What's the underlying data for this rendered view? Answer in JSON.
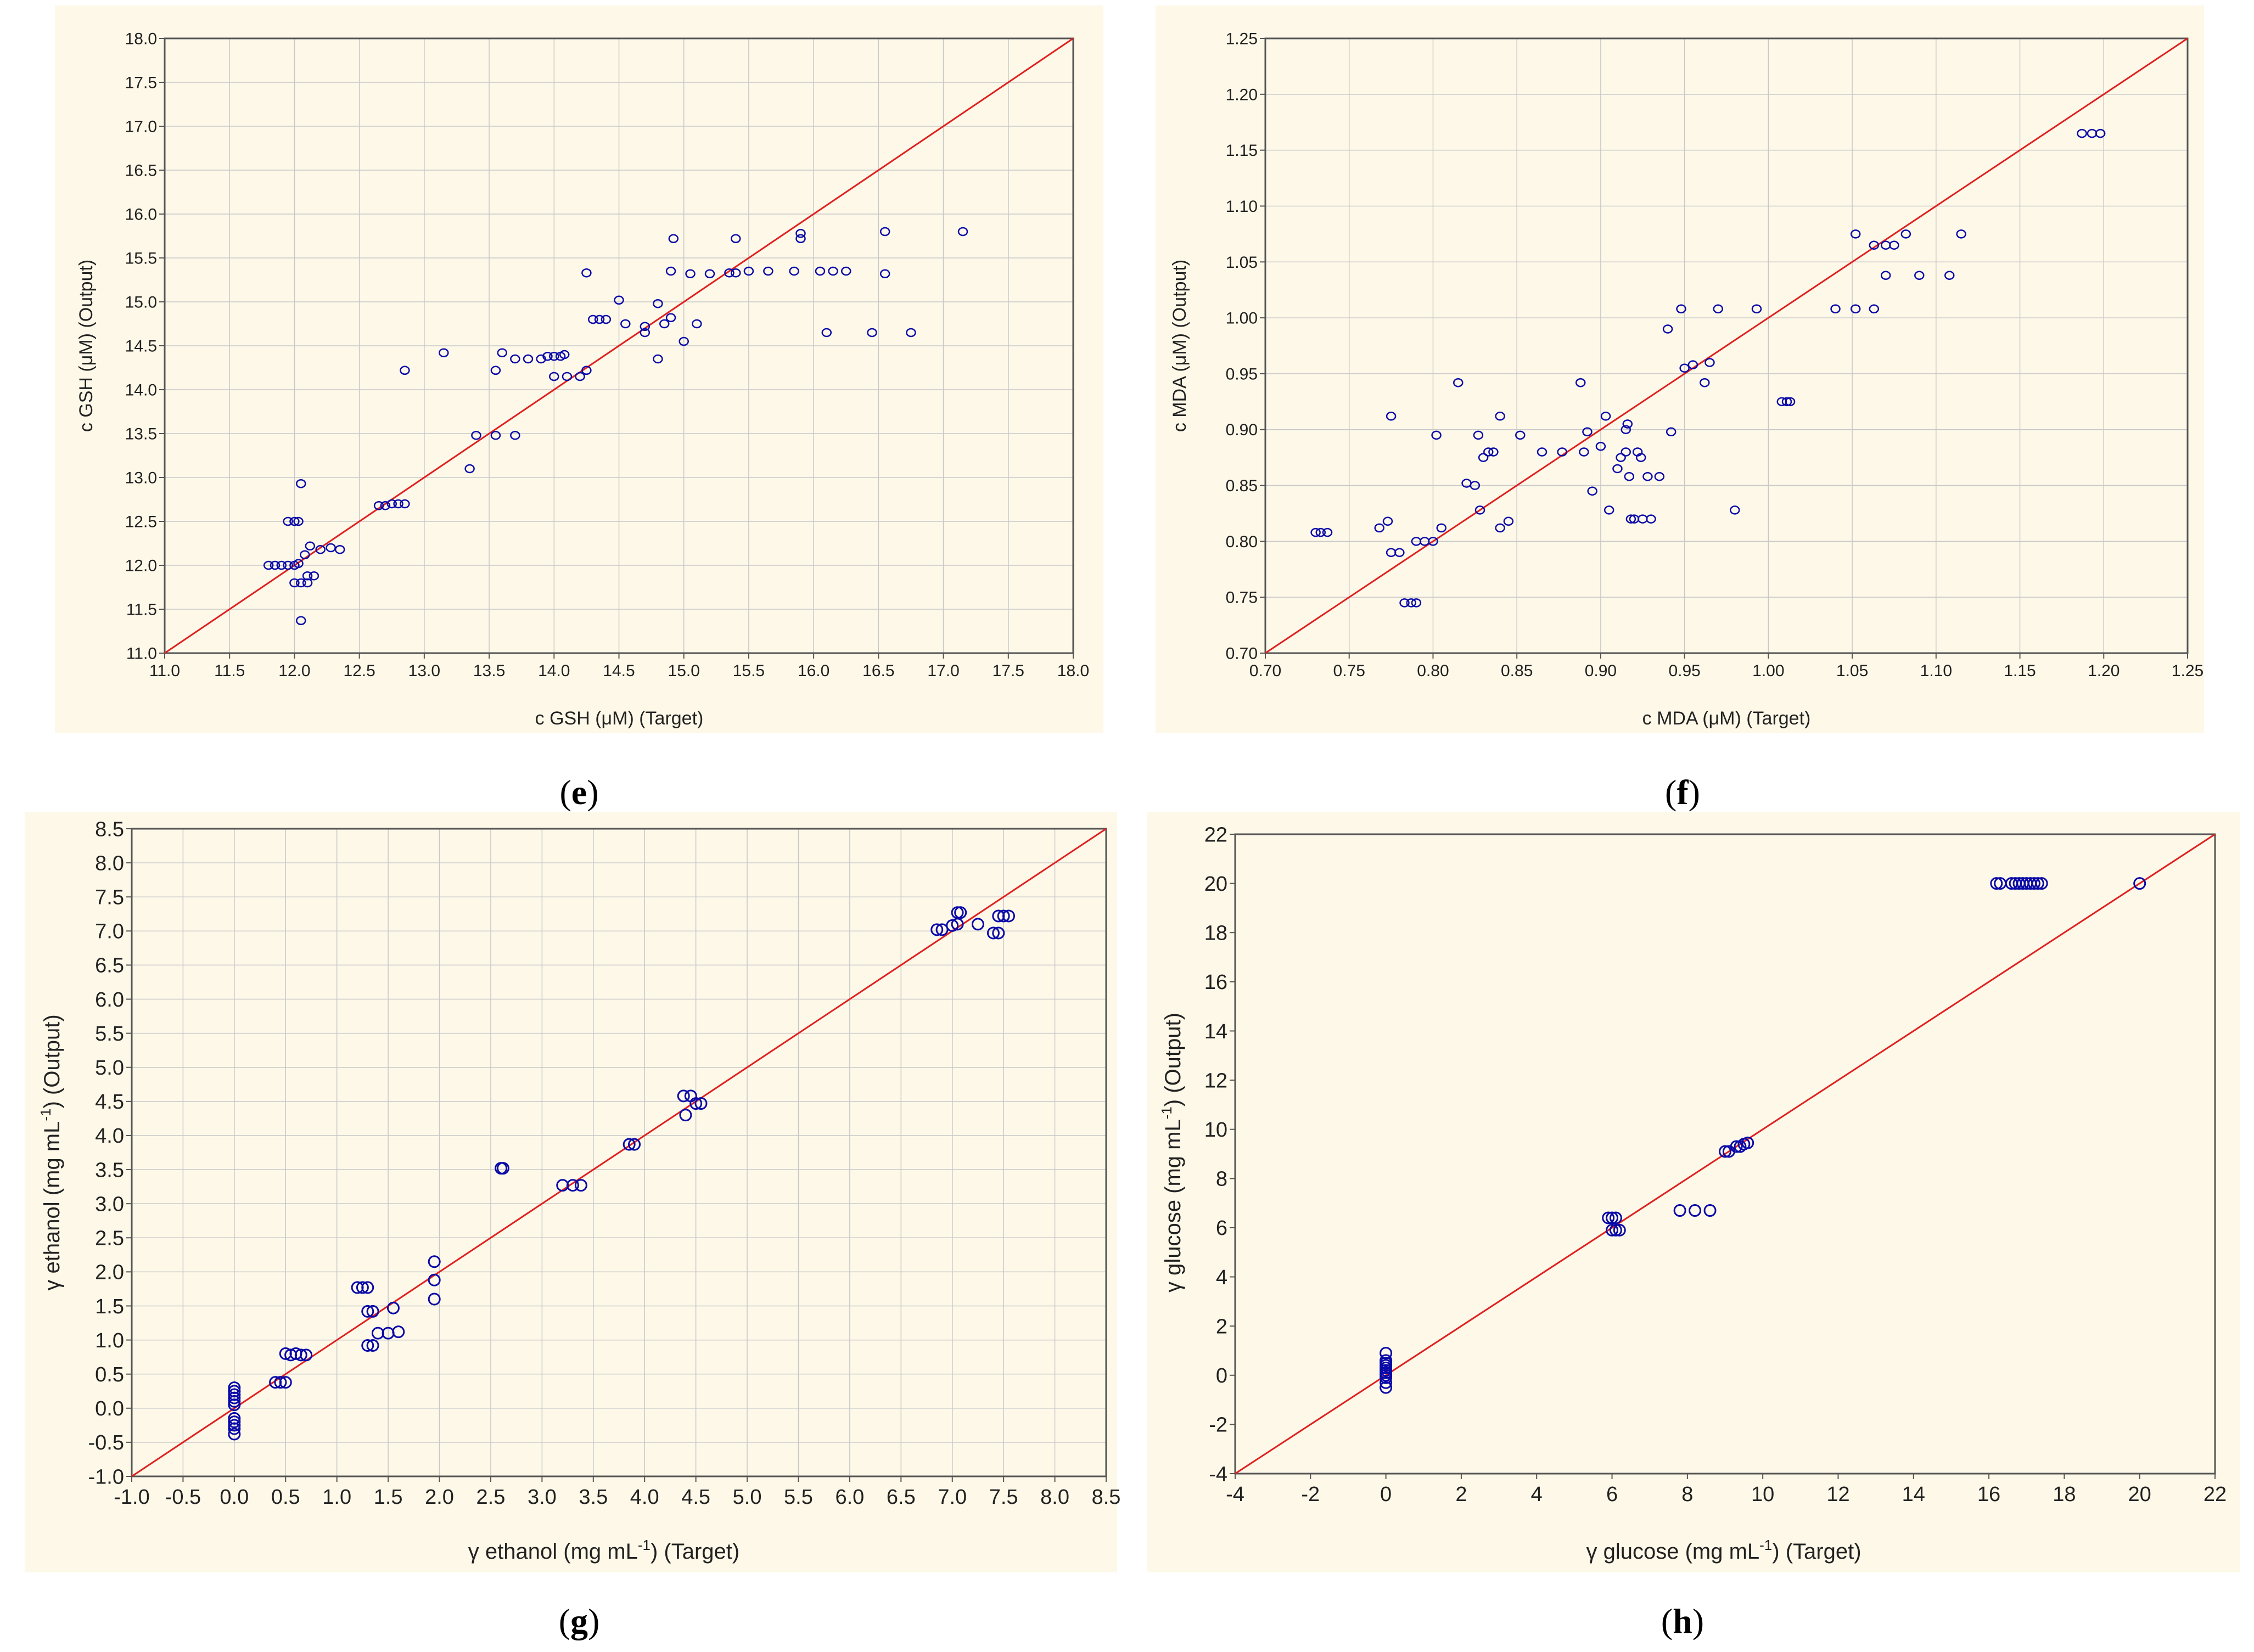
{
  "colors": {
    "panel_bg": "#fdf8e8",
    "line": "#e02020",
    "marker": "#0a0aa8",
    "grid": "#c8c8c8",
    "axis": "#555555"
  },
  "chart_data": [
    {
      "id": "e",
      "type": "scatter",
      "panel_label": "e",
      "xlabel": "c GSH (μM) (Target)",
      "ylabel": "c GSH (μM) (Output)",
      "xlim": [
        11.0,
        18.0
      ],
      "ylim": [
        11.0,
        18.0
      ],
      "xticks": [
        "11.0",
        "11.5",
        "12.0",
        "12.5",
        "13.0",
        "13.5",
        "14.0",
        "14.5",
        "15.0",
        "15.5",
        "16.0",
        "16.5",
        "17.0",
        "17.5",
        "18.0"
      ],
      "yticks": [
        "11.0",
        "11.5",
        "12.0",
        "12.5",
        "13.0",
        "13.5",
        "14.0",
        "14.5",
        "15.0",
        "15.5",
        "16.0",
        "16.5",
        "17.0",
        "17.5",
        "18.0"
      ],
      "grid": true,
      "reference_line": "y = x",
      "points": [
        [
          11.8,
          12.0
        ],
        [
          11.85,
          12.0
        ],
        [
          11.9,
          12.0
        ],
        [
          11.95,
          12.0
        ],
        [
          12.0,
          12.0
        ],
        [
          12.03,
          12.02
        ],
        [
          11.95,
          12.5
        ],
        [
          12.0,
          12.5
        ],
        [
          12.03,
          12.5
        ],
        [
          12.05,
          12.93
        ],
        [
          12.0,
          11.8
        ],
        [
          12.05,
          11.8
        ],
        [
          12.1,
          11.8
        ],
        [
          12.1,
          11.88
        ],
        [
          12.15,
          11.88
        ],
        [
          12.05,
          11.37
        ],
        [
          12.08,
          12.12
        ],
        [
          12.12,
          12.22
        ],
        [
          12.2,
          12.18
        ],
        [
          12.28,
          12.2
        ],
        [
          12.35,
          12.18
        ],
        [
          12.65,
          12.68
        ],
        [
          12.7,
          12.68
        ],
        [
          12.75,
          12.7
        ],
        [
          12.8,
          12.7
        ],
        [
          12.85,
          12.7
        ],
        [
          12.85,
          14.22
        ],
        [
          13.15,
          14.42
        ],
        [
          13.35,
          13.1
        ],
        [
          13.4,
          13.48
        ],
        [
          13.55,
          13.48
        ],
        [
          13.7,
          13.48
        ],
        [
          13.55,
          14.22
        ],
        [
          13.6,
          14.42
        ],
        [
          13.7,
          14.35
        ],
        [
          13.8,
          14.35
        ],
        [
          13.9,
          14.35
        ],
        [
          13.95,
          14.38
        ],
        [
          14.0,
          14.38
        ],
        [
          14.05,
          14.38
        ],
        [
          14.08,
          14.4
        ],
        [
          14.0,
          14.15
        ],
        [
          14.1,
          14.15
        ],
        [
          14.2,
          14.15
        ],
        [
          14.25,
          14.22
        ],
        [
          14.25,
          15.33
        ],
        [
          14.3,
          14.8
        ],
        [
          14.35,
          14.8
        ],
        [
          14.4,
          14.8
        ],
        [
          14.5,
          15.02
        ],
        [
          14.55,
          14.75
        ],
        [
          14.7,
          14.65
        ],
        [
          14.7,
          14.72
        ],
        [
          14.8,
          14.98
        ],
        [
          14.8,
          14.35
        ],
        [
          14.85,
          14.75
        ],
        [
          14.9,
          14.82
        ],
        [
          14.9,
          15.35
        ],
        [
          14.92,
          15.72
        ],
        [
          15.0,
          14.55
        ],
        [
          15.05,
          15.32
        ],
        [
          15.1,
          14.75
        ],
        [
          15.2,
          15.32
        ],
        [
          15.35,
          15.33
        ],
        [
          15.4,
          15.33
        ],
        [
          15.4,
          15.72
        ],
        [
          15.5,
          15.35
        ],
        [
          15.65,
          15.35
        ],
        [
          15.85,
          15.35
        ],
        [
          15.9,
          15.78
        ],
        [
          15.9,
          15.72
        ],
        [
          16.05,
          15.35
        ],
        [
          16.15,
          15.35
        ],
        [
          16.25,
          15.35
        ],
        [
          16.1,
          14.65
        ],
        [
          16.45,
          14.65
        ],
        [
          16.55,
          15.32
        ],
        [
          16.55,
          15.8
        ],
        [
          16.75,
          14.65
        ],
        [
          17.15,
          15.8
        ]
      ]
    },
    {
      "id": "f",
      "type": "scatter",
      "panel_label": "f",
      "xlabel": "c MDA (μM) (Target)",
      "ylabel": "c MDA (μM) (Output)",
      "xlim": [
        0.7,
        1.25
      ],
      "ylim": [
        0.7,
        1.25
      ],
      "xticks": [
        "0.70",
        "0.75",
        "0.80",
        "0.85",
        "0.90",
        "0.95",
        "1.00",
        "1.05",
        "1.10",
        "1.15",
        "1.20",
        "1.25"
      ],
      "yticks": [
        "0.70",
        "0.75",
        "0.80",
        "0.85",
        "0.90",
        "0.95",
        "1.00",
        "1.05",
        "1.10",
        "1.15",
        "1.20",
        "1.25"
      ],
      "grid": true,
      "reference_line": "y = x",
      "points": [
        [
          0.73,
          0.808
        ],
        [
          0.733,
          0.808
        ],
        [
          0.737,
          0.808
        ],
        [
          0.768,
          0.812
        ],
        [
          0.773,
          0.818
        ],
        [
          0.775,
          0.912
        ],
        [
          0.775,
          0.79
        ],
        [
          0.78,
          0.79
        ],
        [
          0.783,
          0.745
        ],
        [
          0.787,
          0.745
        ],
        [
          0.79,
          0.745
        ],
        [
          0.79,
          0.8
        ],
        [
          0.795,
          0.8
        ],
        [
          0.8,
          0.8
        ],
        [
          0.802,
          0.895
        ],
        [
          0.805,
          0.812
        ],
        [
          0.815,
          0.942
        ],
        [
          0.82,
          0.852
        ],
        [
          0.825,
          0.85
        ],
        [
          0.827,
          0.895
        ],
        [
          0.828,
          0.828
        ],
        [
          0.83,
          0.875
        ],
        [
          0.833,
          0.88
        ],
        [
          0.836,
          0.88
        ],
        [
          0.84,
          0.912
        ],
        [
          0.84,
          0.812
        ],
        [
          0.845,
          0.818
        ],
        [
          0.852,
          0.895
        ],
        [
          0.865,
          0.88
        ],
        [
          0.877,
          0.88
        ],
        [
          0.888,
          0.942
        ],
        [
          0.89,
          0.88
        ],
        [
          0.892,
          0.898
        ],
        [
          0.895,
          0.845
        ],
        [
          0.9,
          0.885
        ],
        [
          0.903,
          0.912
        ],
        [
          0.905,
          0.828
        ],
        [
          0.91,
          0.865
        ],
        [
          0.912,
          0.875
        ],
        [
          0.915,
          0.88
        ],
        [
          0.915,
          0.9
        ],
        [
          0.916,
          0.905
        ],
        [
          0.917,
          0.858
        ],
        [
          0.918,
          0.82
        ],
        [
          0.92,
          0.82
        ],
        [
          0.922,
          0.88
        ],
        [
          0.924,
          0.875
        ],
        [
          0.925,
          0.82
        ],
        [
          0.928,
          0.858
        ],
        [
          0.93,
          0.82
        ],
        [
          0.935,
          0.858
        ],
        [
          0.94,
          0.99
        ],
        [
          0.942,
          0.898
        ],
        [
          0.948,
          1.008
        ],
        [
          0.95,
          0.955
        ],
        [
          0.955,
          0.958
        ],
        [
          0.962,
          0.942
        ],
        [
          0.965,
          0.96
        ],
        [
          0.97,
          1.008
        ],
        [
          0.98,
          0.828
        ],
        [
          0.993,
          1.008
        ],
        [
          1.008,
          0.925
        ],
        [
          1.011,
          0.925
        ],
        [
          1.013,
          0.925
        ],
        [
          1.04,
          1.008
        ],
        [
          1.052,
          1.008
        ],
        [
          1.052,
          1.075
        ],
        [
          1.063,
          1.008
        ],
        [
          1.063,
          1.065
        ],
        [
          1.07,
          1.065
        ],
        [
          1.07,
          1.038
        ],
        [
          1.075,
          1.065
        ],
        [
          1.082,
          1.075
        ],
        [
          1.09,
          1.038
        ],
        [
          1.108,
          1.038
        ],
        [
          1.115,
          1.075
        ],
        [
          1.187,
          1.165
        ],
        [
          1.193,
          1.165
        ],
        [
          1.198,
          1.165
        ]
      ]
    },
    {
      "id": "g",
      "type": "scatter",
      "panel_label": "g",
      "xlabel": "γ ethanol (mg mL",
      "ylabel": "γ ethanol (mg mL",
      "label_superscript": "-1",
      "label_suffix": ") (Target)",
      "ylabel_suffix": ") (Output)",
      "xlim": [
        -1.0,
        8.5
      ],
      "ylim": [
        -1.0,
        8.5
      ],
      "xticks": [
        "-1.0",
        "-0.5",
        "0.0",
        "0.5",
        "1.0",
        "1.5",
        "2.0",
        "2.5",
        "3.0",
        "3.5",
        "4.0",
        "4.5",
        "5.0",
        "5.5",
        "6.0",
        "6.5",
        "7.0",
        "7.5",
        "8.0",
        "8.5"
      ],
      "yticks": [
        "-1.0",
        "-0.5",
        "0.0",
        "0.5",
        "1.0",
        "1.5",
        "2.0",
        "2.5",
        "3.0",
        "3.5",
        "4.0",
        "4.5",
        "5.0",
        "5.5",
        "6.0",
        "6.5",
        "7.0",
        "7.5",
        "8.0",
        "8.5"
      ],
      "grid": true,
      "reference_line": "y = x",
      "points": [
        [
          0,
          0.3
        ],
        [
          0,
          0.25
        ],
        [
          0,
          0.2
        ],
        [
          0,
          0.15
        ],
        [
          0,
          0.1
        ],
        [
          0,
          0.05
        ],
        [
          0,
          -0.15
        ],
        [
          0,
          -0.2
        ],
        [
          0,
          -0.25
        ],
        [
          0,
          -0.3
        ],
        [
          0,
          -0.38
        ],
        [
          0.4,
          0.38
        ],
        [
          0.45,
          0.38
        ],
        [
          0.5,
          0.38
        ],
        [
          0.5,
          0.8
        ],
        [
          0.55,
          0.78
        ],
        [
          0.6,
          0.8
        ],
        [
          0.65,
          0.78
        ],
        [
          0.7,
          0.78
        ],
        [
          1.2,
          1.77
        ],
        [
          1.25,
          1.77
        ],
        [
          1.3,
          1.77
        ],
        [
          1.3,
          0.92
        ],
        [
          1.35,
          0.92
        ],
        [
          1.3,
          1.42
        ],
        [
          1.35,
          1.42
        ],
        [
          1.4,
          1.1
        ],
        [
          1.5,
          1.1
        ],
        [
          1.6,
          1.12
        ],
        [
          1.55,
          1.47
        ],
        [
          1.95,
          2.15
        ],
        [
          1.95,
          1.88
        ],
        [
          1.95,
          1.6
        ],
        [
          2.6,
          3.52
        ],
        [
          2.62,
          3.52
        ],
        [
          3.2,
          3.27
        ],
        [
          3.3,
          3.27
        ],
        [
          3.38,
          3.27
        ],
        [
          3.85,
          3.87
        ],
        [
          3.9,
          3.87
        ],
        [
          4.38,
          4.58
        ],
        [
          4.4,
          4.3
        ],
        [
          4.45,
          4.58
        ],
        [
          4.5,
          4.47
        ],
        [
          4.55,
          4.47
        ],
        [
          6.85,
          7.02
        ],
        [
          6.9,
          7.02
        ],
        [
          7.0,
          7.08
        ],
        [
          7.05,
          7.27
        ],
        [
          7.08,
          7.27
        ],
        [
          7.05,
          7.1
        ],
        [
          7.25,
          7.1
        ],
        [
          7.4,
          6.97
        ],
        [
          7.45,
          6.97
        ],
        [
          7.45,
          7.22
        ],
        [
          7.5,
          7.22
        ],
        [
          7.55,
          7.22
        ]
      ]
    },
    {
      "id": "h",
      "type": "scatter",
      "panel_label": "h",
      "xlabel": "γ glucose (mg mL",
      "ylabel": "γ glucose (mg mL",
      "label_superscript": "-1",
      "label_suffix": ") (Target)",
      "ylabel_suffix": ") (Output)",
      "xlim": [
        -4,
        22
      ],
      "ylim": [
        -4,
        22
      ],
      "xticks": [
        "-4",
        "-2",
        "0",
        "2",
        "4",
        "6",
        "8",
        "10",
        "12",
        "14",
        "16",
        "18",
        "20",
        "22"
      ],
      "yticks": [
        "-4",
        "-2",
        "0",
        "2",
        "4",
        "6",
        "8",
        "10",
        "12",
        "14",
        "16",
        "18",
        "20",
        "22"
      ],
      "grid": false,
      "reference_line": "y = x",
      "points": [
        [
          0,
          0.9
        ],
        [
          0,
          0.6
        ],
        [
          0,
          0.5
        ],
        [
          0,
          0.4
        ],
        [
          0,
          0.3
        ],
        [
          0,
          0.2
        ],
        [
          0,
          0.1
        ],
        [
          0,
          0
        ],
        [
          0,
          -0.1
        ],
        [
          0,
          -0.3
        ],
        [
          0,
          -0.5
        ],
        [
          5.9,
          6.4
        ],
        [
          6.0,
          6.4
        ],
        [
          6.1,
          6.4
        ],
        [
          6.0,
          5.9
        ],
        [
          6.1,
          5.9
        ],
        [
          6.2,
          5.9
        ],
        [
          7.8,
          6.7
        ],
        [
          8.2,
          6.7
        ],
        [
          8.6,
          6.7
        ],
        [
          9.0,
          9.1
        ],
        [
          9.1,
          9.1
        ],
        [
          9.3,
          9.3
        ],
        [
          9.4,
          9.3
        ],
        [
          9.5,
          9.4
        ],
        [
          9.6,
          9.45
        ],
        [
          16.2,
          20
        ],
        [
          16.3,
          20
        ],
        [
          16.6,
          20
        ],
        [
          16.7,
          20
        ],
        [
          16.8,
          20
        ],
        [
          16.9,
          20
        ],
        [
          17.0,
          20
        ],
        [
          17.1,
          20
        ],
        [
          17.2,
          20
        ],
        [
          17.3,
          20
        ],
        [
          17.4,
          20
        ],
        [
          20.0,
          20.0
        ]
      ]
    }
  ]
}
